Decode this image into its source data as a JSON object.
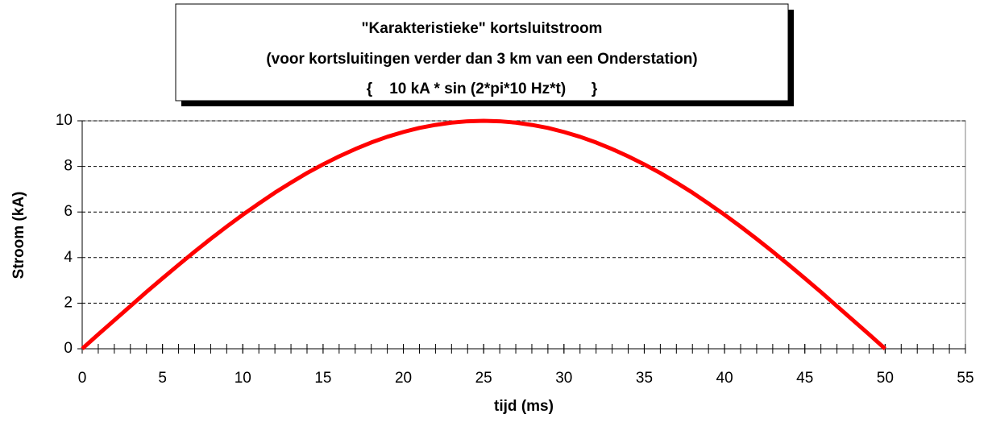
{
  "chart_data": {
    "type": "line",
    "title": [
      "\"Karakteristieke\" kortsluitstroom",
      "(voor kortsluitingen verder dan 3 km van een Onderstation)",
      "{    10 kA * sin (2*pi*10 Hz*t)      }"
    ],
    "xlabel": "tijd (ms)",
    "ylabel": "Stroom (kA)",
    "x": [
      0,
      1,
      2,
      3,
      4,
      5,
      6,
      7,
      8,
      9,
      10,
      11,
      12,
      13,
      14,
      15,
      16,
      17,
      18,
      19,
      20,
      21,
      22,
      23,
      24,
      25,
      26,
      27,
      28,
      29,
      30,
      31,
      32,
      33,
      34,
      35,
      36,
      37,
      38,
      39,
      40,
      41,
      42,
      43,
      44,
      45,
      46,
      47,
      48,
      49,
      50
    ],
    "series": [
      {
        "color": "#ff0000",
        "values": [
          0,
          0.63,
          1.25,
          1.87,
          2.49,
          3.09,
          3.68,
          4.26,
          4.82,
          5.36,
          5.88,
          6.37,
          6.85,
          7.29,
          7.71,
          8.09,
          8.44,
          8.76,
          9.05,
          9.3,
          9.51,
          9.69,
          9.82,
          9.92,
          9.98,
          10,
          9.98,
          9.92,
          9.82,
          9.69,
          9.51,
          9.3,
          9.05,
          8.76,
          8.44,
          8.09,
          7.71,
          7.29,
          6.85,
          6.37,
          5.88,
          5.36,
          4.82,
          4.26,
          3.68,
          3.09,
          2.49,
          1.87,
          1.25,
          0.63,
          0
        ]
      }
    ],
    "xlim": [
      0,
      55
    ],
    "xticks": [
      0,
      5,
      10,
      15,
      20,
      25,
      30,
      35,
      40,
      45,
      50,
      55
    ],
    "xminorticks": [
      0,
      1,
      2,
      3,
      4,
      5,
      6,
      7,
      8,
      9,
      10,
      11,
      12,
      13,
      14,
      15,
      16,
      17,
      18,
      19,
      20,
      21,
      22,
      23,
      24,
      25,
      26,
      27,
      28,
      29,
      30,
      31,
      32,
      33,
      34,
      35,
      36,
      37,
      38,
      39,
      40,
      41,
      42,
      43,
      44,
      45,
      46,
      47,
      48,
      49,
      50,
      51,
      52,
      53,
      54,
      55
    ],
    "ylim": [
      0,
      10
    ],
    "yticks": [
      0,
      2,
      4,
      6,
      8,
      10
    ],
    "grid": true
  }
}
